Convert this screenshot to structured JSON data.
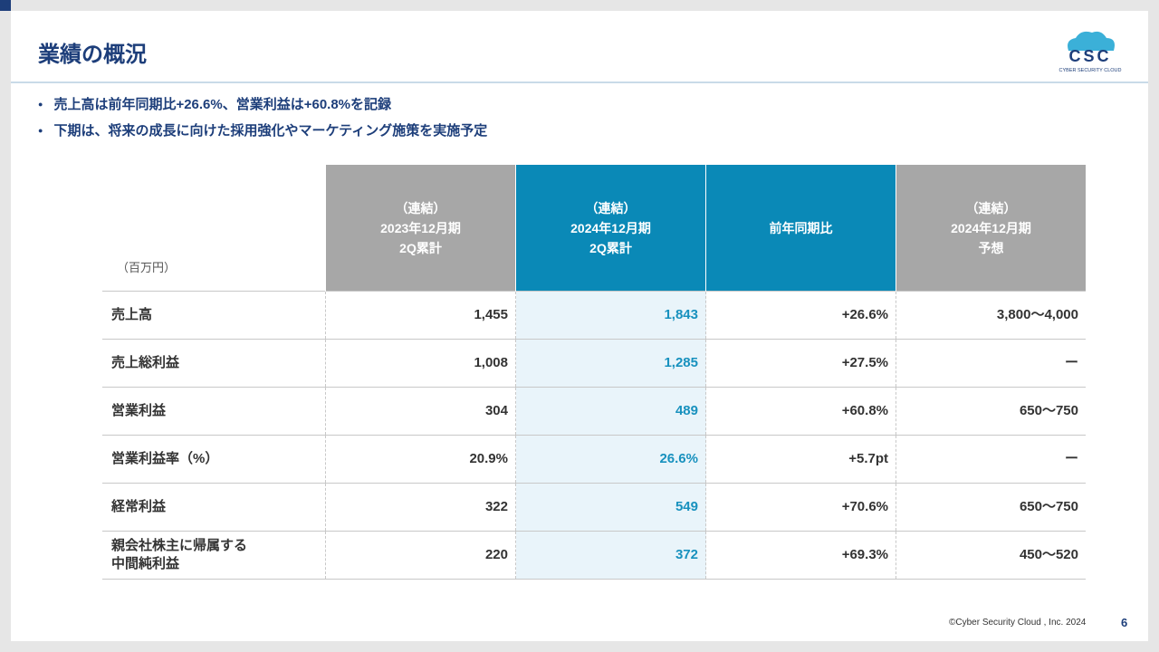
{
  "header": {
    "title": "業績の概況",
    "logo": {
      "mark": "CSC",
      "name": "CYBER SECURITY CLOUD"
    }
  },
  "bullets": [
    "売上高は前年同期比+26.6%、営業利益は+60.8%を記録",
    "下期は、将来の成長に向けた採用強化やマーケティング施策を実施予定"
  ],
  "table": {
    "unit": "（百万円）",
    "columns": [
      [
        "（連結）",
        "2023年12月期",
        "2Q累計"
      ],
      [
        "（連結）",
        "2024年12月期",
        "2Q累計"
      ],
      [
        "前年同期比"
      ],
      [
        "（連結）",
        "2024年12月期",
        "予想"
      ]
    ],
    "rows": [
      [
        [
          "売上高"
        ],
        "1,455",
        "1,843",
        "+26.6%",
        "3,800～4,000"
      ],
      [
        [
          "売上総利益"
        ],
        "1,008",
        "1,285",
        "+27.5%",
        "ー"
      ],
      [
        [
          "営業利益"
        ],
        "304",
        "489",
        "+60.8%",
        "650～750"
      ],
      [
        [
          "営業利益率（%）"
        ],
        "20.9%",
        "26.6%",
        "+5.7pt",
        "ー"
      ],
      [
        [
          "経常利益"
        ],
        "322",
        "549",
        "+70.6%",
        "650～750"
      ],
      [
        [
          "親会社株主に帰属する",
          "中間純利益"
        ],
        "220",
        "372",
        "+69.3%",
        "450～520"
      ]
    ]
  },
  "footer": {
    "copyright": "©Cyber Security Cloud , Inc. 2024",
    "page": "6"
  }
}
